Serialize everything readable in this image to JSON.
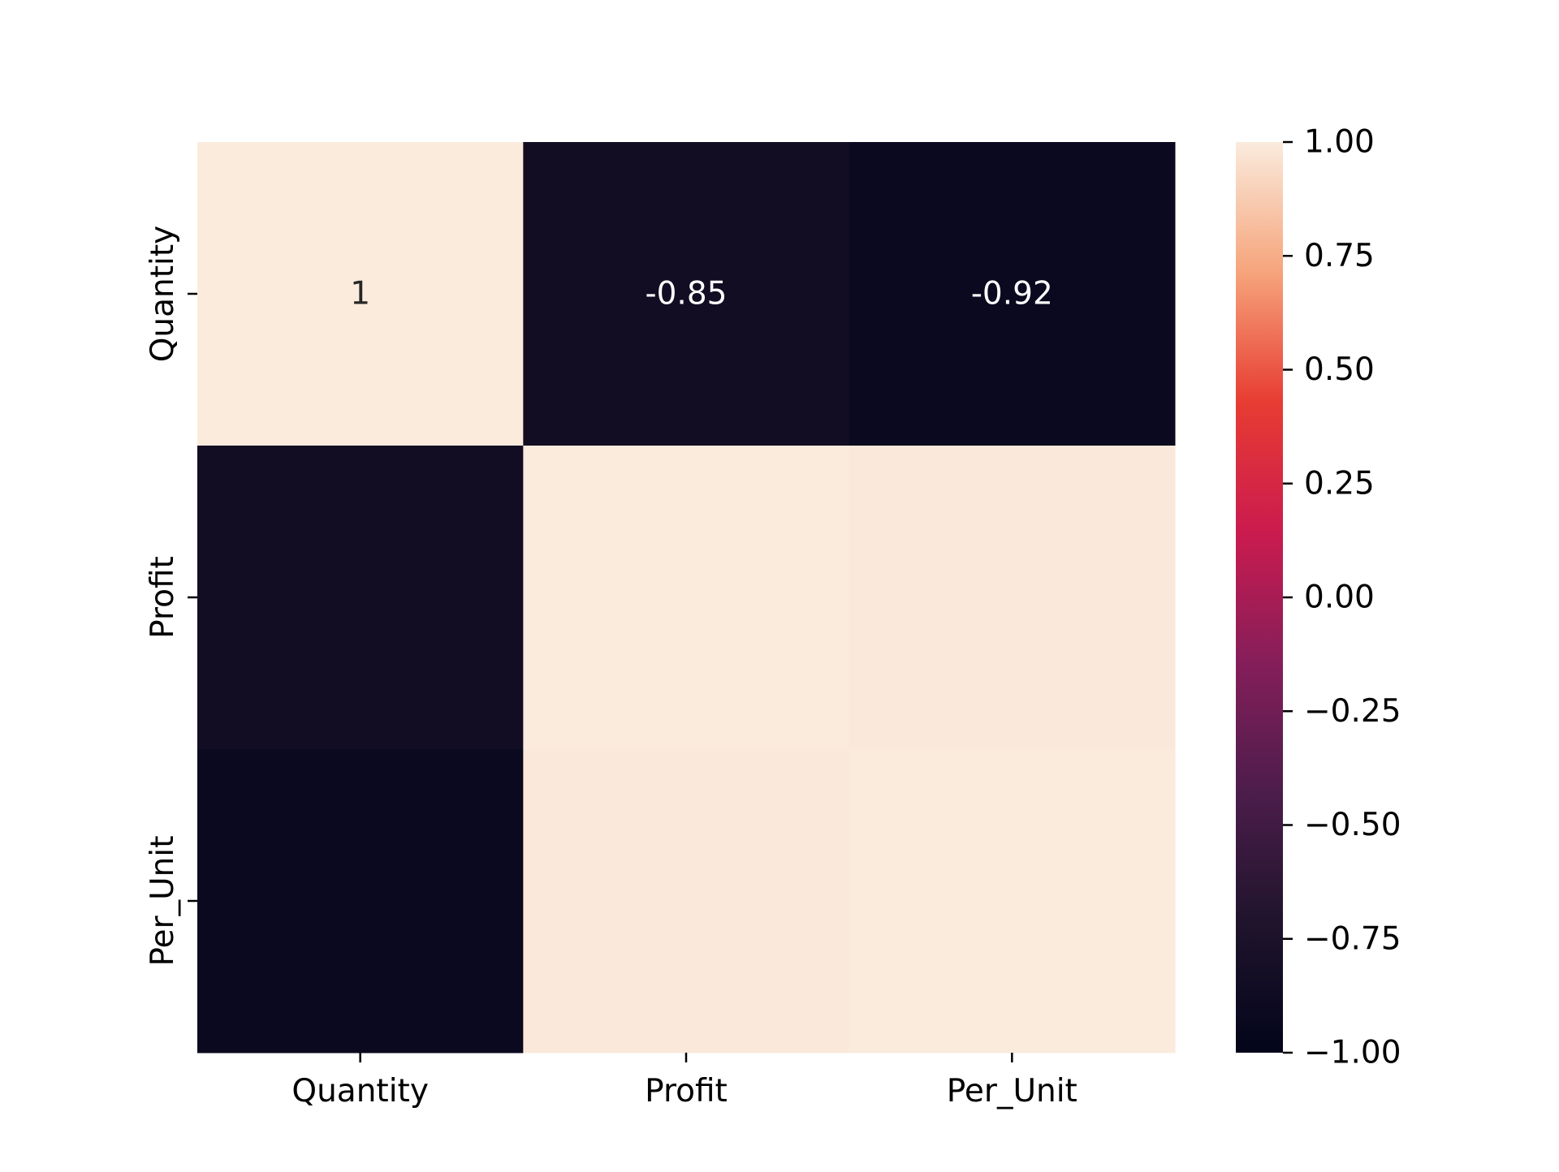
{
  "chart_data": {
    "type": "heatmap",
    "title": "",
    "xlabel": "",
    "ylabel": "",
    "x_categories": [
      "Quantity",
      "Profit",
      "Per_Unit"
    ],
    "y_categories": [
      "Quantity",
      "Profit",
      "Per_Unit"
    ],
    "values": [
      [
        1,
        -0.85,
        -0.92
      ],
      [
        -0.85,
        1,
        0.99
      ],
      [
        -0.92,
        0.99,
        1
      ]
    ],
    "annotations": [
      [
        "1",
        "-0.85",
        "-0.92"
      ],
      [
        "",
        "",
        ""
      ],
      [
        "",
        "",
        ""
      ]
    ],
    "colorbar": {
      "vmin": -1.0,
      "vmax": 1.0,
      "ticks": [
        1.0,
        0.75,
        0.5,
        0.25,
        0.0,
        -0.25,
        -0.5,
        -0.75,
        -1.0
      ],
      "tick_labels": [
        "1.00",
        "0.75",
        "0.50",
        "0.25",
        "0.00",
        "−0.25",
        "−0.50",
        "−0.75",
        "−1.00"
      ],
      "colormap": "rocket",
      "colormap_stops": [
        "#03051a",
        "#1f142c",
        "#4c1d4b",
        "#851e5a",
        "#cb1b4f",
        "#e73c32",
        "#f6a47b",
        "#faebdd"
      ]
    },
    "grid": false,
    "legend": "none"
  }
}
